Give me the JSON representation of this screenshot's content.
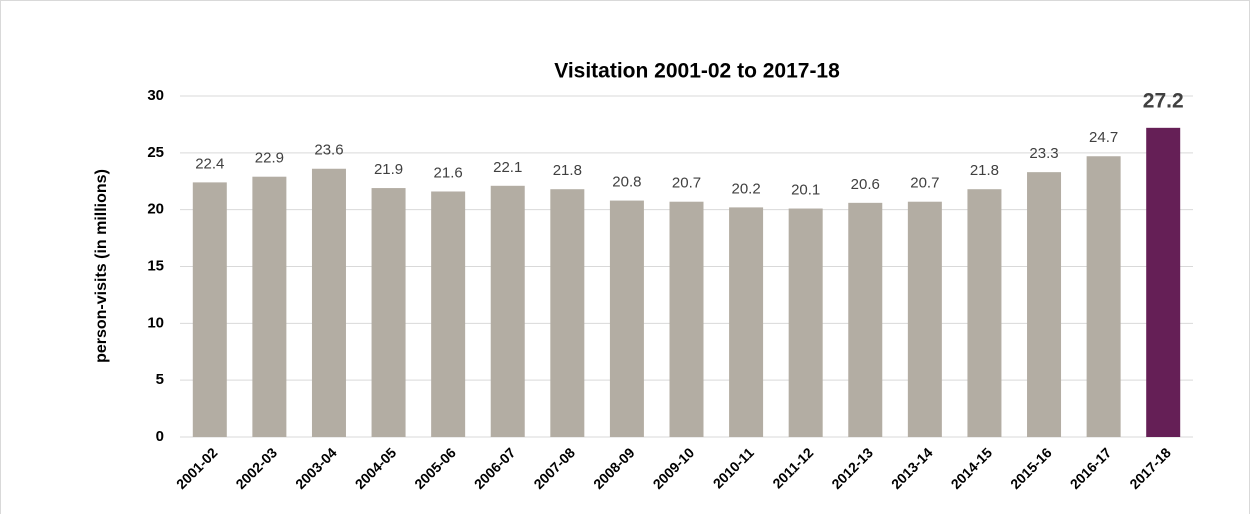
{
  "chart_data": {
    "type": "bar",
    "title": "Visitation 2001-02 to 2017-18",
    "y_label": "person-visits (in millions)",
    "categories": [
      "2001-02",
      "2002-03",
      "2003-04",
      "2004-05",
      "2005-06",
      "2006-07",
      "2007-08",
      "2008-09",
      "2009-10",
      "2010-11",
      "2011-12",
      "2012-13",
      "2013-14",
      "2014-15",
      "2015-16",
      "2016-17",
      "2017-18"
    ],
    "values": [
      22.4,
      22.9,
      23.6,
      21.9,
      21.6,
      22.1,
      21.8,
      20.8,
      20.7,
      20.2,
      20.1,
      20.6,
      20.7,
      21.8,
      23.3,
      24.7,
      27.2
    ],
    "color": "#b3ada3",
    "colors": [
      "#b3ada3",
      "#b3ada3",
      "#b3ada3",
      "#b3ada3",
      "#b3ada3",
      "#b3ada3",
      "#b3ada3",
      "#b3ada3",
      "#b3ada3",
      "#b3ada3",
      "#b3ada3",
      "#b3ada3",
      "#b3ada3",
      "#b3ada3",
      "#b3ada3",
      "#b3ada3",
      "#651f56"
    ],
    "ylim": [
      0,
      30
    ],
    "yticks": [
      0,
      5,
      10,
      15,
      20,
      25,
      30
    ],
    "grid": true
  }
}
